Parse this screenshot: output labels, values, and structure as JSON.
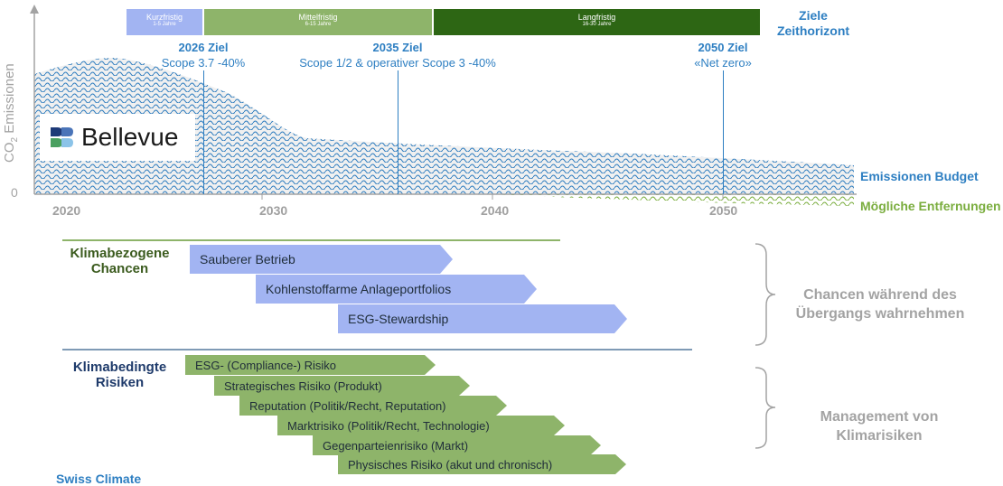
{
  "colors": {
    "goal_blue": "#2e7fc2",
    "budget_blue": "#2f7dbf",
    "removal_green": "#7aad3e",
    "phase_short": "#a2b4f2",
    "phase_mid": "#8eb46a",
    "phase_long": "#2d6614",
    "arrow_blue": "#a2b4f2",
    "arrow_green": "#8eb46a",
    "chancen_green": "#3b5b1e",
    "risiken_navy": "#1f3b6b",
    "side_gray": "#a3a3a3"
  },
  "axis": {
    "ylabel_main": "CO",
    "ylabel_sub": "2",
    "ylabel_rest": " Emissionen",
    "zero": "0",
    "years": [
      "2020",
      "2030",
      "2040",
      "2050"
    ]
  },
  "phases": [
    {
      "label": "Kurzfristig",
      "sub": "1-5 Jahre"
    },
    {
      "label": "Mittelfristig",
      "sub": "6-15 Jahre"
    },
    {
      "label": "Langfristig",
      "sub": "16-30 Jahre"
    }
  ],
  "horizon_label": {
    "line1": "Ziele",
    "line2": "Zeithorizont"
  },
  "goals": [
    {
      "title": "2026 Ziel",
      "text": "Scope 3.7 -40%"
    },
    {
      "title": "2035 Ziel",
      "text": "Scope 1/2 & operativer Scope 3 -40%"
    },
    {
      "title": "2050 Ziel",
      "text": "«Net zero»"
    }
  ],
  "logo": {
    "name": "Bellevue"
  },
  "legend": {
    "budget": "Emissionen Budget",
    "removals": "Mögliche Entfernungen"
  },
  "chancen": {
    "heading_line1": "Klimabezogene",
    "heading_line2": "Chancen",
    "arrows": [
      "Sauberer Betrieb",
      "Kohlenstoffarme Anlageportfolios",
      "ESG-Stewardship"
    ],
    "side_line1": "Chancen während des",
    "side_line2": "Übergangs wahrnehmen"
  },
  "risiken": {
    "heading_line1": "Klimabedingte",
    "heading_line2": "Risiken",
    "arrows": [
      "ESG- (Compliance-) Risiko",
      "Strategisches Risiko (Produkt)",
      "Reputation (Politik/Recht, Reputation)",
      "Marktrisiko (Politik/Recht, Technologie)",
      "Gegenparteienrisiko (Markt)",
      "Physisches Risiko (akut und chronisch)"
    ],
    "side_line1": "Management von",
    "side_line2": "Klimarisiken"
  },
  "footer": "Swiss Climate"
}
